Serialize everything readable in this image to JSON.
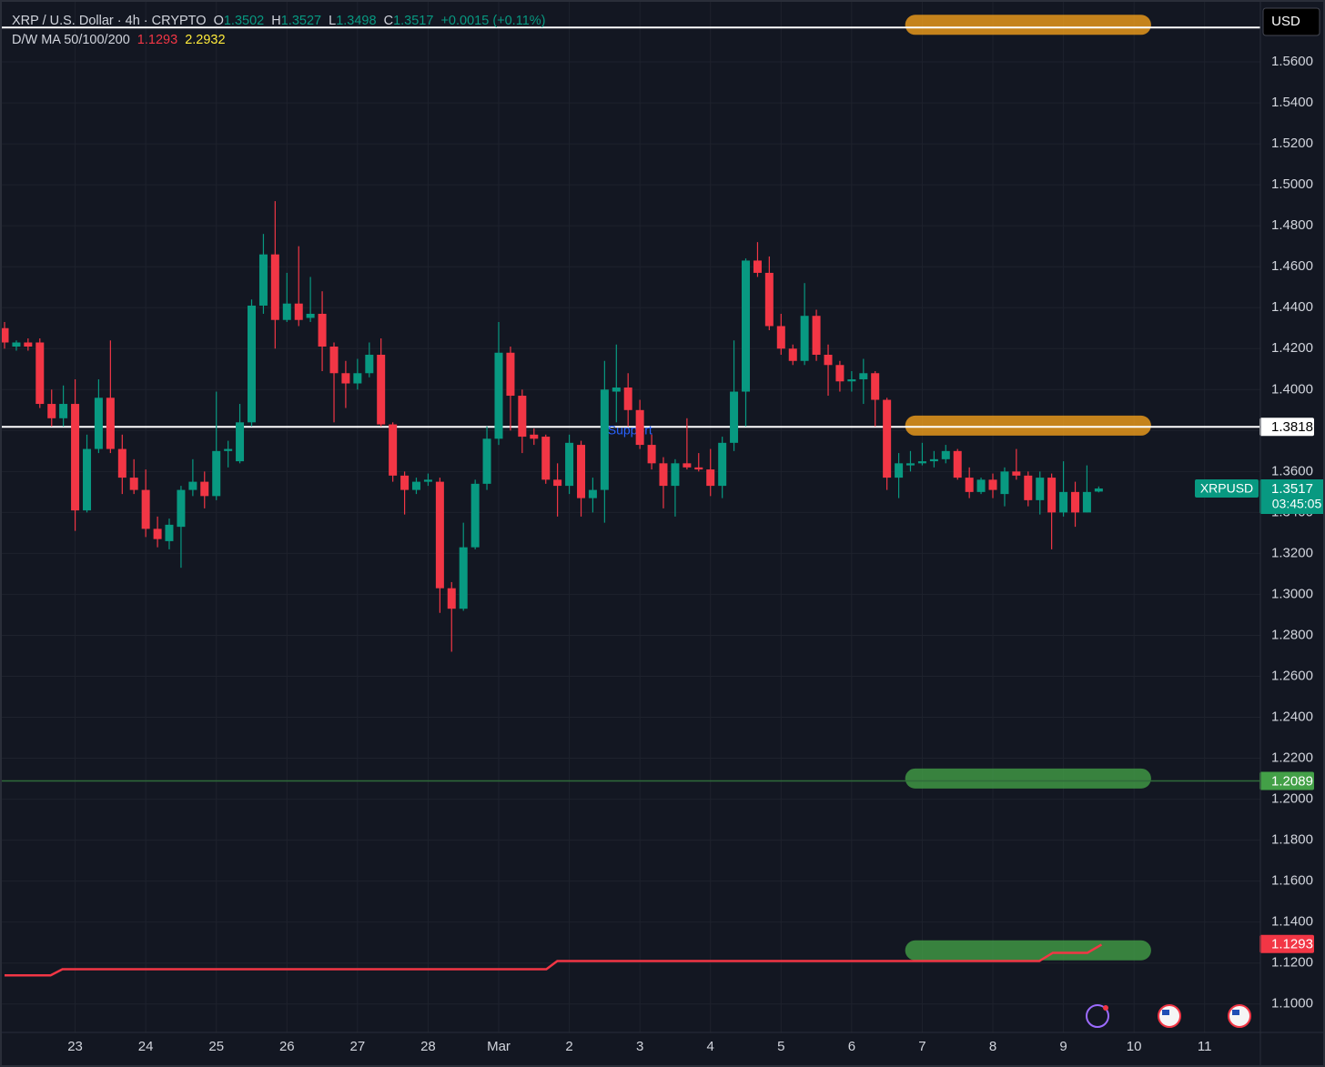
{
  "chart_data": {
    "type": "candlestick",
    "header": {
      "symbol": "XRP / U.S. Dollar · 4h · CRYPTO",
      "ohlc": [
        {
          "label": "O",
          "value": 1.3502
        },
        {
          "label": "H",
          "value": 1.3527
        },
        {
          "label": "L",
          "value": 1.3498
        },
        {
          "label": "C",
          "value": 1.3517
        }
      ],
      "change": "+0.0015 (+0.11%)"
    },
    "currency": "USD",
    "indicator": {
      "label": "D/W MA 50/100/200",
      "readings": [
        {
          "value": 1.1293,
          "color": "#f23645"
        },
        {
          "value": 2.2932,
          "color": "#ffeb3b"
        }
      ],
      "line": {
        "color": "#f23645",
        "x": [
          0,
          0.652,
          0.82,
          7.675,
          7.83,
          14.66,
          14.85,
          15.34,
          15.54
        ],
        "values": [
          1.114,
          1.114,
          1.117,
          1.117,
          1.121,
          1.121,
          1.125,
          1.125,
          1.129
        ]
      }
    },
    "up_color": "#089981",
    "down_color": "#f23645",
    "x": [
      0,
      0.167,
      0.333,
      0.5,
      0.667,
      0.833,
      1,
      1.167,
      1.333,
      1.5,
      1.667,
      1.833,
      2,
      2.167,
      2.333,
      2.5,
      2.667,
      2.833,
      3,
      3.167,
      3.333,
      3.5,
      3.667,
      3.833,
      4,
      4.167,
      4.333,
      4.5,
      4.667,
      4.833,
      5,
      5.167,
      5.333,
      5.5,
      5.667,
      5.833,
      6,
      6.167,
      6.333,
      6.5,
      6.667,
      6.833,
      7,
      7.167,
      7.333,
      7.5,
      7.667,
      7.833,
      8,
      8.167,
      8.333,
      8.5,
      8.667,
      8.833,
      9,
      9.167,
      9.333,
      9.5,
      9.667,
      9.833,
      10,
      10.167,
      10.333,
      10.5,
      10.667,
      10.833,
      11,
      11.167,
      11.333,
      11.5,
      11.667,
      11.833,
      12,
      12.167,
      12.333,
      12.5,
      12.667,
      12.833,
      13,
      13.167,
      13.333,
      13.5,
      13.667,
      13.833,
      14,
      14.167,
      14.333,
      14.5,
      14.667,
      14.833,
      15,
      15.167,
      15.333,
      15.5
    ],
    "open": [
      1.43,
      1.421,
      1.423,
      1.423,
      1.393,
      1.386,
      1.393,
      1.341,
      1.371,
      1.396,
      1.371,
      1.357,
      1.351,
      1.332,
      1.326,
      1.333,
      1.351,
      1.355,
      1.348,
      1.37,
      1.365,
      1.384,
      1.441,
      1.466,
      1.434,
      1.442,
      1.435,
      1.437,
      1.421,
      1.408,
      1.403,
      1.408,
      1.417,
      1.383,
      1.358,
      1.351,
      1.355,
      1.355,
      1.303,
      1.293,
      1.323,
      1.354,
      1.376,
      1.418,
      1.397,
      1.378,
      1.377,
      1.356,
      1.353,
      1.373,
      1.347,
      1.351,
      1.399,
      1.401,
      1.39,
      1.373,
      1.364,
      1.353,
      1.364,
      1.362,
      1.361,
      1.353,
      1.374,
      1.399,
      1.463,
      1.457,
      1.431,
      1.42,
      1.414,
      1.436,
      1.417,
      1.412,
      1.404,
      1.405,
      1.408,
      1.395,
      1.357,
      1.363,
      1.364,
      1.365,
      1.366,
      1.37,
      1.357,
      1.35,
      1.356,
      1.349,
      1.36,
      1.358,
      1.346,
      1.357,
      1.34,
      1.35,
      1.34,
      1.3502
    ],
    "high": [
      1.433,
      1.424,
      1.425,
      1.425,
      1.4,
      1.402,
      1.405,
      1.378,
      1.405,
      1.424,
      1.378,
      1.366,
      1.361,
      1.338,
      1.337,
      1.353,
      1.366,
      1.36,
      1.399,
      1.375,
      1.393,
      1.444,
      1.476,
      1.492,
      1.457,
      1.47,
      1.455,
      1.448,
      1.423,
      1.414,
      1.415,
      1.423,
      1.425,
      1.384,
      1.36,
      1.357,
      1.359,
      1.357,
      1.306,
      1.335,
      1.356,
      1.382,
      1.433,
      1.421,
      1.4,
      1.381,
      1.378,
      1.364,
      1.378,
      1.375,
      1.357,
      1.414,
      1.422,
      1.408,
      1.395,
      1.378,
      1.367,
      1.366,
      1.386,
      1.369,
      1.371,
      1.377,
      1.424,
      1.464,
      1.472,
      1.465,
      1.437,
      1.422,
      1.452,
      1.439,
      1.422,
      1.414,
      1.409,
      1.415,
      1.409,
      1.396,
      1.369,
      1.37,
      1.374,
      1.37,
      1.373,
      1.371,
      1.362,
      1.357,
      1.359,
      1.362,
      1.371,
      1.36,
      1.36,
      1.359,
      1.365,
      1.355,
      1.363,
      1.3527
    ],
    "low": [
      1.42,
      1.419,
      1.419,
      1.391,
      1.382,
      1.382,
      1.331,
      1.34,
      1.369,
      1.369,
      1.349,
      1.349,
      1.328,
      1.323,
      1.322,
      1.313,
      1.348,
      1.342,
      1.346,
      1.362,
      1.364,
      1.382,
      1.437,
      1.42,
      1.433,
      1.431,
      1.433,
      1.409,
      1.384,
      1.391,
      1.4,
      1.406,
      1.382,
      1.355,
      1.339,
      1.349,
      1.353,
      1.291,
      1.272,
      1.292,
      1.322,
      1.351,
      1.373,
      1.38,
      1.369,
      1.373,
      1.354,
      1.338,
      1.349,
      1.338,
      1.34,
      1.335,
      1.384,
      1.382,
      1.371,
      1.361,
      1.342,
      1.338,
      1.361,
      1.36,
      1.348,
      1.347,
      1.37,
      1.382,
      1.455,
      1.429,
      1.417,
      1.412,
      1.412,
      1.414,
      1.397,
      1.399,
      1.399,
      1.393,
      1.382,
      1.351,
      1.347,
      1.36,
      1.363,
      1.362,
      1.364,
      1.356,
      1.347,
      1.349,
      1.347,
      1.343,
      1.356,
      1.343,
      1.339,
      1.322,
      1.338,
      1.333,
      1.34,
      1.3498
    ],
    "close": [
      1.423,
      1.423,
      1.421,
      1.393,
      1.386,
      1.393,
      1.341,
      1.371,
      1.396,
      1.371,
      1.357,
      1.351,
      1.332,
      1.327,
      1.334,
      1.351,
      1.355,
      1.348,
      1.37,
      1.371,
      1.384,
      1.441,
      1.466,
      1.434,
      1.442,
      1.434,
      1.437,
      1.421,
      1.408,
      1.403,
      1.408,
      1.417,
      1.383,
      1.358,
      1.351,
      1.355,
      1.356,
      1.303,
      1.293,
      1.323,
      1.354,
      1.376,
      1.418,
      1.397,
      1.377,
      1.376,
      1.356,
      1.353,
      1.374,
      1.347,
      1.351,
      1.4,
      1.401,
      1.39,
      1.373,
      1.364,
      1.353,
      1.364,
      1.362,
      1.361,
      1.353,
      1.374,
      1.399,
      1.463,
      1.457,
      1.431,
      1.42,
      1.414,
      1.436,
      1.417,
      1.412,
      1.404,
      1.405,
      1.408,
      1.395,
      1.357,
      1.364,
      1.364,
      1.365,
      1.366,
      1.37,
      1.357,
      1.35,
      1.356,
      1.351,
      1.36,
      1.358,
      1.346,
      1.357,
      1.34,
      1.35,
      1.34,
      1.35,
      1.3517
    ],
    "last_price": {
      "name": "XRPUSD",
      "value": 1.3517,
      "countdown": "03:45:05"
    },
    "levels": [
      {
        "value": 1.5768,
        "color": "#ffffff",
        "show_label": false
      },
      {
        "value": 1.3818,
        "color": "#ffffff",
        "show_label": true
      },
      {
        "value": 1.2089,
        "color": "#2f6b3a",
        "show_label": true,
        "label_color": "#43a047"
      }
    ],
    "highlights": [
      {
        "value": 1.5781,
        "x": [
          12.9,
          16.1
        ],
        "color": "#f7a21b"
      },
      {
        "value": 1.3824,
        "x": [
          12.9,
          16.1
        ],
        "color": "#f7a21b"
      },
      {
        "value": 1.2101,
        "x": [
          12.9,
          16.1
        ],
        "color": "#43a047"
      },
      {
        "value": 1.1262,
        "x": [
          12.9,
          16.1
        ],
        "color": "#43a047"
      }
    ],
    "annotation": {
      "text": "Support",
      "x": 8.86,
      "value": 1.3797,
      "color": "#2962ff"
    },
    "xlim": [
      0,
      17.79
    ],
    "ylim": [
      1.087,
      1.588
    ],
    "xticks": [
      {
        "value": 1,
        "label": "23"
      },
      {
        "value": 2,
        "label": "24"
      },
      {
        "value": 3,
        "label": "25"
      },
      {
        "value": 4,
        "label": "26"
      },
      {
        "value": 5,
        "label": "27"
      },
      {
        "value": 6,
        "label": "28"
      },
      {
        "value": 7,
        "label": "Mar"
      },
      {
        "value": 8,
        "label": "2"
      },
      {
        "value": 9,
        "label": "3"
      },
      {
        "value": 10,
        "label": "4"
      },
      {
        "value": 11,
        "label": "5"
      },
      {
        "value": 12,
        "label": "6"
      },
      {
        "value": 13,
        "label": "7"
      },
      {
        "value": 14,
        "label": "8"
      },
      {
        "value": 15,
        "label": "9"
      },
      {
        "value": 16,
        "label": "10"
      },
      {
        "value": 17,
        "label": "11"
      }
    ],
    "yticks": [
      {
        "value": 1.1,
        "label": "1.1000"
      },
      {
        "value": 1.12,
        "label": "1.1200"
      },
      {
        "value": 1.14,
        "label": "1.1400"
      },
      {
        "value": 1.16,
        "label": "1.1600"
      },
      {
        "value": 1.18,
        "label": "1.1800"
      },
      {
        "value": 1.2,
        "label": "1.2000"
      },
      {
        "value": 1.22,
        "label": "1.2200"
      },
      {
        "value": 1.24,
        "label": "1.2400"
      },
      {
        "value": 1.26,
        "label": "1.2600"
      },
      {
        "value": 1.28,
        "label": "1.2800"
      },
      {
        "value": 1.3,
        "label": "1.3000"
      },
      {
        "value": 1.32,
        "label": "1.3200"
      },
      {
        "value": 1.34,
        "label": "1.3400"
      },
      {
        "value": 1.36,
        "label": "1.3600"
      },
      {
        "value": 1.38,
        "label": "1.3800"
      },
      {
        "value": 1.4,
        "label": "1.4000"
      },
      {
        "value": 1.42,
        "label": "1.4200"
      },
      {
        "value": 1.44,
        "label": "1.4400"
      },
      {
        "value": 1.46,
        "label": "1.4600"
      },
      {
        "value": 1.48,
        "label": "1.4800"
      },
      {
        "value": 1.5,
        "label": "1.5000"
      },
      {
        "value": 1.52,
        "label": "1.5200"
      },
      {
        "value": 1.54,
        "label": "1.5400"
      },
      {
        "value": 1.56,
        "label": "1.5600"
      }
    ],
    "grid": true
  }
}
